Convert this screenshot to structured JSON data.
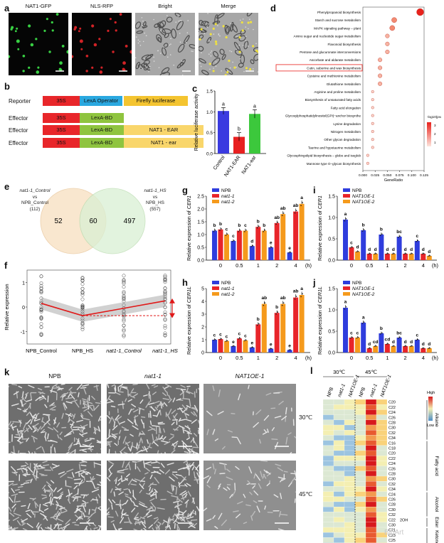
{
  "panel_a": {
    "label": "a",
    "images": [
      {
        "title": "NAT1-GFP",
        "kind": "fluor",
        "color": "#3ee64a"
      },
      {
        "title": "NLS-RFP",
        "kind": "fluor",
        "color": "#e8262a"
      },
      {
        "title": "Bright",
        "kind": "bright",
        "color": "#9a9a9a"
      },
      {
        "title": "Merge",
        "kind": "merge",
        "color": "#9a9a9a"
      }
    ]
  },
  "panel_b": {
    "label": "b",
    "rows": [
      {
        "role": "Reporter",
        "parts": [
          {
            "text": "35S",
            "color": "#e8262a"
          },
          {
            "text": "LexA Operator",
            "color": "#2aa8e0"
          },
          {
            "text": "Firefly luciferase",
            "color": "#f4c430"
          }
        ]
      },
      {
        "role": "Effector",
        "parts": [
          {
            "text": "35S",
            "color": "#e8262a"
          },
          {
            "text": "LexA-BD",
            "color": "#8fc43f"
          }
        ]
      },
      {
        "role": "Effector",
        "parts": [
          {
            "text": "35S",
            "color": "#e8262a"
          },
          {
            "text": "LexA-BD",
            "color": "#8fc43f"
          },
          {
            "text": "NAT1 - EAR",
            "color": "#f9d66b"
          }
        ]
      },
      {
        "role": "Effector",
        "parts": [
          {
            "text": "35S",
            "color": "#e8262a"
          },
          {
            "text": "LexA-BD",
            "color": "#8fc43f"
          },
          {
            "text": "NAT1 - ear",
            "color": "#f9d66b"
          }
        ]
      }
    ]
  },
  "panel_c": {
    "label": "c",
    "chart_data": {
      "type": "bar",
      "ylabel": "Relative luciferase activity",
      "ylim": [
        0,
        1.5
      ],
      "yticks": [
        "0.0",
        "0.5",
        "1.0",
        "1.5"
      ],
      "categories": [
        "Control",
        "NAT1-EAR",
        "NAT1-ear"
      ],
      "values": [
        1.02,
        0.4,
        0.95
      ],
      "errors": [
        0.08,
        0.1,
        0.1
      ],
      "colors": [
        "#3a3ae0",
        "#e82020",
        "#3cc83c"
      ],
      "letters": [
        "a",
        "b",
        "a"
      ]
    }
  },
  "panel_d": {
    "label": "d",
    "chart_data": {
      "type": "scatter",
      "xlabel": "GeneRatio",
      "xlim": [
        0,
        0.125
      ],
      "xticks": [
        "0.000",
        "0.025",
        "0.050",
        "0.075",
        "0.100",
        "0.125"
      ],
      "legend_title": "-log10(pvalue)",
      "legend_ticks": [
        "3",
        "2",
        "1"
      ],
      "highlighted": "Cutin, suberine and wax biosynthesis",
      "terms": [
        {
          "name": "Phenylpropanoid biosynthesis",
          "x": 0.117,
          "c": 4
        },
        {
          "name": "Starch and sucrose metabolism",
          "x": 0.064,
          "c": 2.2
        },
        {
          "name": "MAPK signaling pathway – plant",
          "x": 0.06,
          "c": 2
        },
        {
          "name": "Amino sugar and nucleotide sugar metabolism",
          "x": 0.05,
          "c": 1.8
        },
        {
          "name": "Flavonoid biosynthesis",
          "x": 0.05,
          "c": 1.8
        },
        {
          "name": "Pentose and glucuronate interconversions",
          "x": 0.05,
          "c": 1.7
        },
        {
          "name": "Ascorbate and aldarate metabolism",
          "x": 0.035,
          "c": 1.5
        },
        {
          "name": "Cutin, suberine and wax biosynthesis",
          "x": 0.035,
          "c": 1.5
        },
        {
          "name": "Cysteine and methionine metabolism",
          "x": 0.035,
          "c": 1.4
        },
        {
          "name": "Glutathione metabolism",
          "x": 0.035,
          "c": 1.4
        },
        {
          "name": "Arginine and proline metabolism",
          "x": 0.02,
          "c": 1.1
        },
        {
          "name": "Biosynthesis of unsaturated fatty acids",
          "x": 0.02,
          "c": 1.1
        },
        {
          "name": "Fatty acid elongation",
          "x": 0.02,
          "c": 1.1
        },
        {
          "name": "Glycosylphosphatidylinositol(GPI)−anchor biosynthe",
          "x": 0.02,
          "c": 1
        },
        {
          "name": "Lysine degradation",
          "x": 0.02,
          "c": 1
        },
        {
          "name": "Nitrogen metabolism",
          "x": 0.02,
          "c": 1
        },
        {
          "name": "Other glycan degradation",
          "x": 0.02,
          "c": 1
        },
        {
          "name": "Taurine and hypotaurine metabolism",
          "x": 0.02,
          "c": 1
        },
        {
          "name": "Glycosphingolipid biosynthesis – globo and isoglob",
          "x": 0.01,
          "c": 0.9
        },
        {
          "name": "Mannose type O−glycan biosynthesis",
          "x": 0.01,
          "c": 0.9
        }
      ]
    }
  },
  "panel_e": {
    "label": "e",
    "left_title": [
      "nat1-1_Control",
      "vs",
      "NPB_Control"
    ],
    "left_count": "(112)",
    "right_title": [
      "nat1-1_HS",
      "vs",
      "NPB_HS"
    ],
    "right_count": "(557)",
    "left_only": "52",
    "overlap": "60",
    "right_only": "497"
  },
  "panel_f": {
    "label": "f",
    "chart_data": {
      "type": "line",
      "ylabel": "Relative expression",
      "ylim": [
        -1.5,
        1.5
      ],
      "yticks": [
        "1",
        "0",
        "-1"
      ],
      "categories": [
        "NPB_Control",
        "NPB_HS",
        "nat1-1_Control",
        "nat1-1_HS"
      ],
      "trend": [
        0.15,
        -0.35,
        -0.05,
        0.25
      ]
    }
  },
  "line_charts": {
    "x_categories": [
      "0",
      "0.5",
      "1",
      "2",
      "4"
    ],
    "x_unit": "(h)"
  },
  "panel_g": {
    "label": "g",
    "ylabel": "Relative expression of CER1",
    "yticks": [
      "0.0",
      "0.5",
      "1.0",
      "1.5",
      "2.0",
      "2.5"
    ],
    "ylim": [
      0,
      2.5
    ],
    "chart_data": {
      "type": "bar",
      "categories": [
        "0",
        "0.5",
        "1",
        "2",
        "4"
      ],
      "series": [
        {
          "name": "NPB",
          "values": [
            1.15,
            0.75,
            0.55,
            0.5,
            0.3
          ],
          "letters": [
            "b",
            "c",
            "d",
            "e",
            "e"
          ]
        },
        {
          "name": "nat1-1",
          "values": [
            1.2,
            1.15,
            1.3,
            1.45,
            1.9
          ],
          "letters": [
            "b",
            "b",
            "b",
            "ab",
            "ab"
          ]
        },
        {
          "name": "nat1-2",
          "values": [
            1.0,
            1.15,
            1.15,
            1.8,
            2.2
          ],
          "letters": [
            "c",
            "c",
            "b",
            "ab",
            "a"
          ]
        }
      ],
      "extra_letters": [
        "cd"
      ]
    }
  },
  "panel_h": {
    "label": "h",
    "ylabel": "Relative expression of CER1L",
    "yticks": [
      "0",
      "1",
      "2",
      "3",
      "4",
      "5"
    ],
    "ylim": [
      0,
      5
    ],
    "chart_data": {
      "type": "bar",
      "categories": [
        "0",
        "0.5",
        "1",
        "2",
        "4"
      ],
      "series": [
        {
          "name": "NPB",
          "values": [
            1.0,
            0.5,
            0.4,
            0.3,
            0.2
          ],
          "letters": [
            "c",
            "e",
            "e",
            "e",
            "e"
          ]
        },
        {
          "name": "nat1-1",
          "values": [
            1.05,
            1.1,
            2.2,
            3.1,
            4.3
          ],
          "letters": [
            "c",
            "c",
            "b",
            "b",
            "ab"
          ]
        },
        {
          "name": "nat1-2",
          "values": [
            0.9,
            0.95,
            3.8,
            3.8,
            4.5
          ],
          "letters": [
            "c",
            "c",
            "ab",
            "ab",
            "a"
          ]
        }
      ],
      "extra_letters": [
        "de",
        "ab"
      ]
    }
  },
  "panel_i": {
    "label": "i",
    "ylabel": "Relative expression of CER1",
    "yticks": [
      "0.0",
      "0.5",
      "1.0",
      "1.5"
    ],
    "ylim": [
      0,
      1.5
    ],
    "chart_data": {
      "type": "bar",
      "categories": [
        "0",
        "0.5",
        "1",
        "2",
        "4"
      ],
      "series": [
        {
          "name": "NPB",
          "values": [
            0.95,
            0.7,
            0.6,
            0.55,
            0.45
          ],
          "letters": [
            "a",
            "b",
            "b",
            "bc",
            "c"
          ]
        },
        {
          "name": "NAT1OE-1",
          "values": [
            0.3,
            0.15,
            0.15,
            0.15,
            0.15
          ],
          "letters": [
            "c",
            "d",
            "d",
            "d",
            "d"
          ]
        },
        {
          "name": "NAT1OE-2",
          "values": [
            0.2,
            0.15,
            0.15,
            0.15,
            0.1
          ],
          "letters": [
            "d",
            "d",
            "d",
            "d",
            "d"
          ]
        }
      ]
    }
  },
  "panel_j": {
    "label": "j",
    "ylabel": "Relative expression of CER1L",
    "yticks": [
      "0.0",
      "0.5",
      "1.0",
      "1.5"
    ],
    "ylim": [
      0,
      1.5
    ],
    "chart_data": {
      "type": "bar",
      "categories": [
        "0",
        "0.5",
        "1",
        "2",
        "4"
      ],
      "series": [
        {
          "name": "NPB",
          "values": [
            1.05,
            0.7,
            0.45,
            0.35,
            0.3
          ],
          "letters": [
            "a",
            "a",
            "b",
            "bc",
            "c"
          ]
        },
        {
          "name": "NAT1OE-1",
          "values": [
            0.35,
            0.1,
            0.2,
            0.15,
            0.1
          ],
          "letters": [
            "c",
            "d",
            "cd",
            "d",
            "d"
          ]
        },
        {
          "name": "NAT1OE-2",
          "values": [
            0.35,
            0.15,
            0.15,
            0.15,
            0.1
          ],
          "letters": [
            "c",
            "cd",
            "d",
            "d",
            "d"
          ]
        }
      ]
    }
  },
  "bar_colors": [
    "#2f3ddd",
    "#e8252a",
    "#f59a1c"
  ],
  "panel_k": {
    "label": "k",
    "columns": [
      "NPB",
      "nat1-1",
      "NAT1OE-1"
    ],
    "rows": [
      "30℃",
      "45℃"
    ]
  },
  "panel_l": {
    "label": "l",
    "temps": [
      "30℃",
      "45℃"
    ],
    "columns": [
      "NPB",
      "nat1-1",
      "NAT1OE-1",
      "NPB",
      "nat1-1",
      "NAT1OE-1"
    ],
    "rows": [
      "C20",
      "C22",
      "C24",
      "C26",
      "C28",
      "C30",
      "C32",
      "C34",
      "C16",
      "C18",
      "C20",
      "C22",
      "C24",
      "C26",
      "C28",
      "C30",
      "C32",
      "C34",
      "C24",
      "C26",
      "C28",
      "C30",
      "C32",
      "C22",
      "C30",
      "C21",
      "C23",
      "C25",
      "C27"
    ],
    "special_label": "2OH",
    "groups": [
      "Alkane",
      "Fatty acid",
      "Alcohol",
      "Ester",
      "Ketone"
    ],
    "legend_high": "High",
    "legend_low": "Low"
  },
  "watermark": "BioArt"
}
